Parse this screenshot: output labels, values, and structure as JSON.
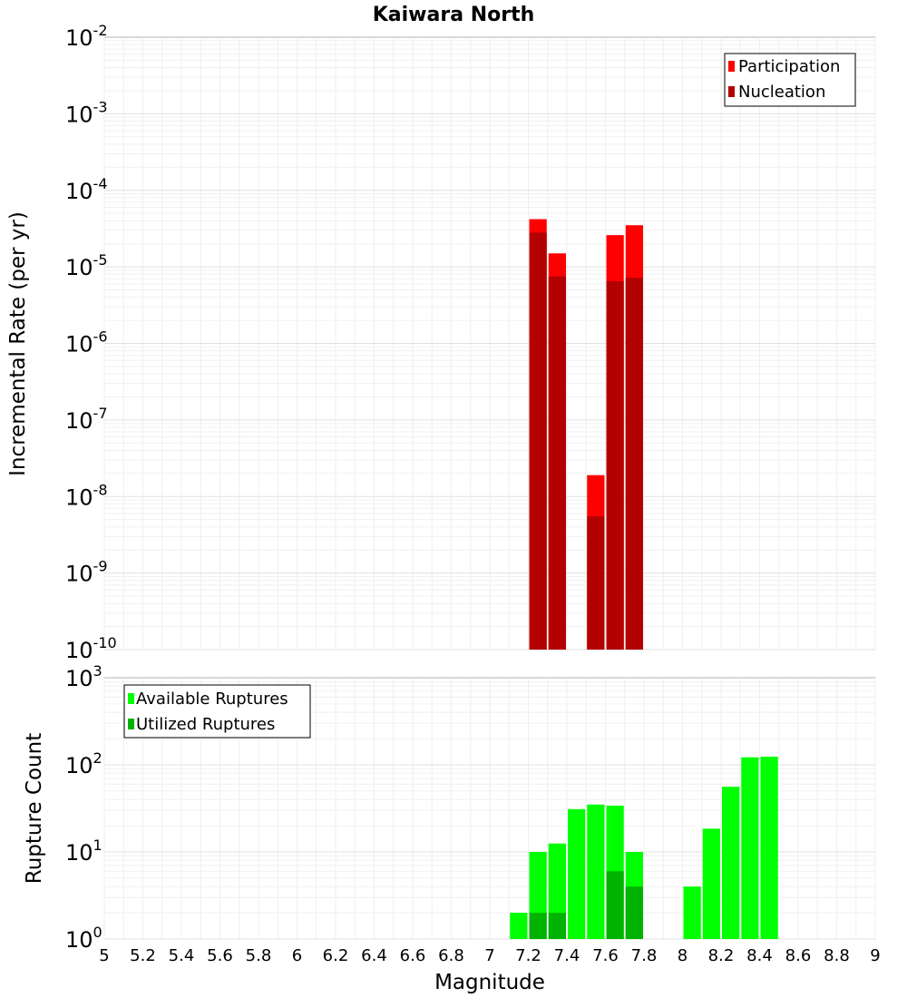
{
  "chart_data": [
    {
      "type": "bar",
      "title": "Kaiwara North",
      "xlabel": "Magnitude",
      "ylabel": "Incremental Rate (per yr)",
      "yscale": "log",
      "ylim_exp": [
        -10,
        -2
      ],
      "xlim": [
        5,
        9
      ],
      "bin_width": 0.1,
      "legend_position": "top-right",
      "series": [
        {
          "name": "Participation",
          "color": "#ff0000",
          "points": [
            {
              "x": 7.25,
              "y": 4.2e-05
            },
            {
              "x": 7.35,
              "y": 1.5e-05
            },
            {
              "x": 7.55,
              "y": 1.9e-08
            },
            {
              "x": 7.65,
              "y": 2.6e-05
            },
            {
              "x": 7.75,
              "y": 3.5e-05
            }
          ]
        },
        {
          "name": "Nucleation",
          "color": "#b30000",
          "points": [
            {
              "x": 7.25,
              "y": 2.8e-05
            },
            {
              "x": 7.35,
              "y": 7.5e-06
            },
            {
              "x": 7.55,
              "y": 5.5e-09
            },
            {
              "x": 7.65,
              "y": 6.5e-06
            },
            {
              "x": 7.75,
              "y": 7.2e-06
            }
          ]
        }
      ]
    },
    {
      "type": "bar",
      "xlabel": "Magnitude",
      "ylabel": "Rupture Count",
      "yscale": "log",
      "ylim_exp": [
        0,
        3
      ],
      "xlim": [
        5,
        9
      ],
      "bin_width": 0.1,
      "legend_position": "top-left",
      "series": [
        {
          "name": "Available Ruptures",
          "color": "#00ff00",
          "points": [
            {
              "x": 7.05,
              "y": 1
            },
            {
              "x": 7.15,
              "y": 2
            },
            {
              "x": 7.25,
              "y": 10
            },
            {
              "x": 7.35,
              "y": 12.5
            },
            {
              "x": 7.45,
              "y": 31
            },
            {
              "x": 7.55,
              "y": 35
            },
            {
              "x": 7.65,
              "y": 34
            },
            {
              "x": 7.75,
              "y": 10
            },
            {
              "x": 8.05,
              "y": 4
            },
            {
              "x": 8.15,
              "y": 18.5
            },
            {
              "x": 8.25,
              "y": 56
            },
            {
              "x": 8.35,
              "y": 122
            },
            {
              "x": 8.45,
              "y": 124
            }
          ]
        },
        {
          "name": "Utilized Ruptures",
          "color": "#00b300",
          "points": [
            {
              "x": 7.25,
              "y": 2
            },
            {
              "x": 7.35,
              "y": 2
            },
            {
              "x": 7.55,
              "y": 1
            },
            {
              "x": 7.65,
              "y": 6
            },
            {
              "x": 7.75,
              "y": 4
            }
          ]
        }
      ]
    }
  ],
  "x_ticks": [
    "5",
    "5.2",
    "5.4",
    "5.6",
    "5.8",
    "6",
    "6.2",
    "6.4",
    "6.6",
    "6.8",
    "7",
    "7.2",
    "7.4",
    "7.6",
    "7.8",
    "8",
    "8.2",
    "8.4",
    "8.6",
    "8.8",
    "9"
  ],
  "top_y_ticks": [
    {
      "base": "10",
      "exp": "-2"
    },
    {
      "base": "10",
      "exp": "-3"
    },
    {
      "base": "10",
      "exp": "-4"
    },
    {
      "base": "10",
      "exp": "-5"
    },
    {
      "base": "10",
      "exp": "-6"
    },
    {
      "base": "10",
      "exp": "-7"
    },
    {
      "base": "10",
      "exp": "-8"
    },
    {
      "base": "10",
      "exp": "-9"
    },
    {
      "base": "10",
      "exp": "-10"
    }
  ],
  "bottom_y_ticks": [
    {
      "base": "10",
      "exp": "3"
    },
    {
      "base": "10",
      "exp": "2"
    },
    {
      "base": "10",
      "exp": "1"
    },
    {
      "base": "10",
      "exp": "0"
    }
  ]
}
